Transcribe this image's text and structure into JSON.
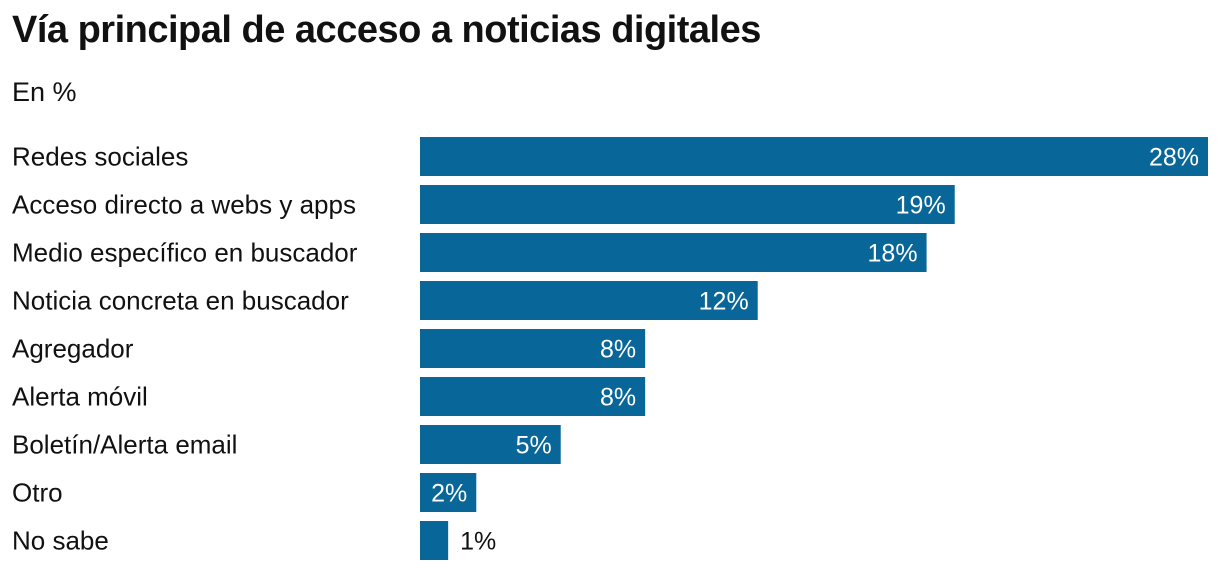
{
  "chart_data": {
    "type": "bar",
    "orientation": "horizontal",
    "title": "Vía principal de acceso a noticias digitales",
    "subtitle": "En %",
    "categories": [
      "Redes sociales",
      "Acceso directo a webs y apps",
      "Medio específico en buscador",
      "Noticia concreta en buscador",
      "Agregador",
      "Alerta móvil",
      "Boletín/Alerta email",
      "Otro",
      "No sabe"
    ],
    "values": [
      28,
      19,
      18,
      12,
      8,
      8,
      5,
      2,
      1
    ],
    "value_labels": [
      "28%",
      "19%",
      "18%",
      "12%",
      "8%",
      "8%",
      "5%",
      "2%",
      "1%"
    ],
    "xlim": [
      0,
      28
    ],
    "xlabel": "",
    "ylabel": "",
    "grid": false,
    "legend": "none",
    "colors": {
      "bar": "#086699",
      "label_inside": "#ffffff",
      "label_outside": "#111111"
    }
  }
}
